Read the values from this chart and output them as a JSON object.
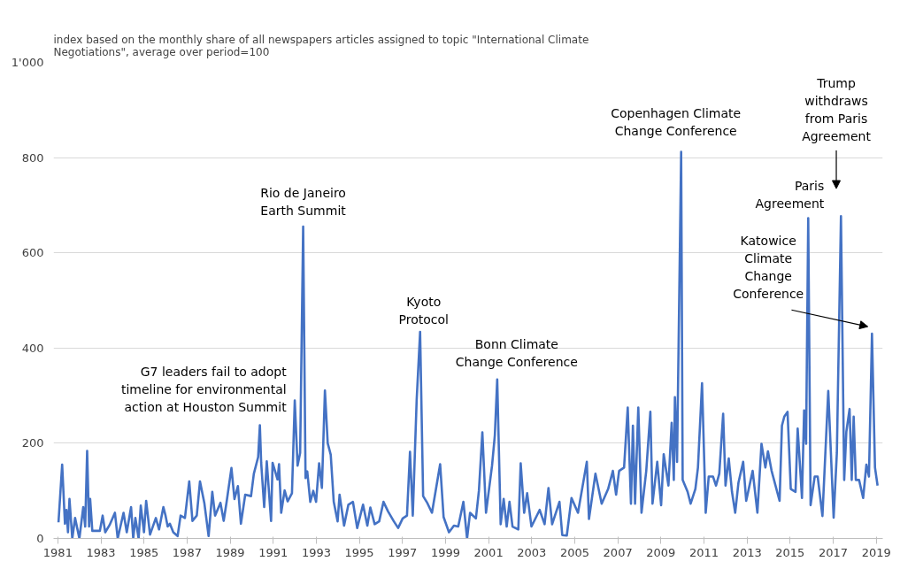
{
  "chart_data": {
    "type": "line",
    "title": "index based on the monthly share of all newspapers articles assigned to topic \"International Climate Negotiations\", average over period=100",
    "series": [
      {
        "color": "#4472c4",
        "x": [
          1981.03,
          1981.2,
          1981.33,
          1981.4,
          1981.47,
          1981.54,
          1981.67,
          1981.8,
          1982.0,
          1982.18,
          1982.27,
          1982.36,
          1982.45,
          1982.5,
          1982.6,
          1982.95,
          1983.08,
          1983.2,
          1983.4,
          1983.65,
          1983.78,
          1984.05,
          1984.2,
          1984.4,
          1984.5,
          1984.6,
          1984.75,
          1984.85,
          1985.0,
          1985.1,
          1985.28,
          1985.55,
          1985.7,
          1985.9,
          1986.0,
          1986.1,
          1986.2,
          1986.36,
          1986.56,
          1986.7,
          1986.9,
          1987.1,
          1987.25,
          1987.45,
          1987.6,
          1987.8,
          1988.0,
          1988.17,
          1988.3,
          1988.55,
          1988.7,
          1988.84,
          1989.06,
          1989.2,
          1989.36,
          1989.5,
          1989.7,
          1989.97,
          1990.1,
          1990.3,
          1990.38,
          1990.44,
          1990.58,
          1990.7,
          1990.9,
          1990.97,
          1991.2,
          1991.27,
          1991.37,
          1991.53,
          1991.67,
          1991.87,
          1992.0,
          1992.13,
          1992.25,
          1992.39,
          1992.5,
          1992.58,
          1992.72,
          1992.86,
          1992.99,
          1993.13,
          1993.26,
          1993.4,
          1993.53,
          1993.67,
          1993.81,
          1993.99,
          1994.08,
          1994.29,
          1994.49,
          1994.7,
          1994.9,
          1995.17,
          1995.37,
          1995.51,
          1995.71,
          1995.92,
          1996.12,
          1996.33,
          1996.6,
          1996.8,
          1997.01,
          1997.21,
          1997.35,
          1997.48,
          1997.66,
          1997.82,
          1997.96,
          1998.16,
          1998.37,
          1998.75,
          1998.91,
          1999.16,
          1999.39,
          1999.59,
          1999.83,
          2000.0,
          2000.14,
          2000.41,
          2000.55,
          2000.71,
          2000.88,
          2001.16,
          2001.29,
          2001.4,
          2001.56,
          2001.7,
          2001.84,
          2001.97,
          2002.11,
          2002.38,
          2002.49,
          2002.65,
          2002.79,
          2002.99,
          2003.37,
          2003.6,
          2003.78,
          2003.95,
          2004.29,
          2004.42,
          2004.63,
          2004.85,
          2005.15,
          2005.56,
          2005.66,
          2005.96,
          2006.25,
          2006.55,
          2006.77,
          2006.92,
          2007.06,
          2007.29,
          2007.46,
          2007.61,
          2007.7,
          2007.8,
          2007.95,
          2008.1,
          2008.32,
          2008.51,
          2008.61,
          2008.83,
          2009.01,
          2009.13,
          2009.35,
          2009.5,
          2009.6,
          2009.65,
          2009.75,
          2009.94,
          2010.01,
          2010.24,
          2010.38,
          2010.6,
          2010.72,
          2010.91,
          2011.08,
          2011.22,
          2011.42,
          2011.56,
          2011.71,
          2011.89,
          2012.0,
          2012.15,
          2012.3,
          2012.45,
          2012.6,
          2012.82,
          2012.96,
          2013.26,
          2013.48,
          2013.67,
          2013.85,
          2013.97,
          2014.14,
          2014.51,
          2014.62,
          2014.73,
          2014.88,
          2015.03,
          2015.25,
          2015.35,
          2015.55,
          2015.65,
          2015.74,
          2015.84,
          2015.95,
          2016.14,
          2016.28,
          2016.5,
          2016.77,
          2017.02,
          2017.17,
          2017.36,
          2017.51,
          2017.61,
          2017.76,
          2017.86,
          2017.95,
          2018.05,
          2018.2,
          2018.39,
          2018.54,
          2018.66,
          2018.8,
          2018.94,
          2019.06
        ],
        "values": [
          34,
          155,
          31,
          60,
          13,
          83,
          0,
          43,
          0,
          66,
          25,
          184,
          25,
          83,
          16,
          16,
          48,
          13,
          28,
          54,
          0,
          54,
          13,
          66,
          0,
          43,
          0,
          69,
          13,
          79,
          8,
          43,
          19,
          66,
          48,
          25,
          31,
          13,
          5,
          48,
          43,
          120,
          37,
          48,
          120,
          75,
          5,
          98,
          48,
          75,
          37,
          78,
          148,
          83,
          110,
          31,
          92,
          89,
          136,
          171,
          238,
          159,
          66,
          162,
          37,
          159,
          124,
          156,
          54,
          101,
          78,
          95,
          290,
          153,
          180,
          655,
          127,
          141,
          77,
          100,
          77,
          158,
          106,
          311,
          200,
          176,
          77,
          36,
          92,
          27,
          71,
          77,
          22,
          71,
          27,
          65,
          30,
          36,
          77,
          57,
          36,
          22,
          42,
          48,
          182,
          48,
          291,
          434,
          89,
          74,
          54,
          156,
          45,
          13,
          27,
          25,
          77,
          0,
          54,
          42,
          100,
          223,
          54,
          153,
          217,
          334,
          30,
          83,
          25,
          77,
          25,
          19,
          158,
          54,
          95,
          25,
          60,
          30,
          106,
          30,
          77,
          7,
          6,
          85,
          54,
          161,
          41,
          136,
          73,
          104,
          142,
          92,
          142,
          149,
          275,
          73,
          237,
          73,
          275,
          54,
          142,
          266,
          73,
          161,
          70,
          177,
          111,
          243,
          123,
          297,
          161,
          812,
          123,
          98,
          73,
          104,
          149,
          326,
          54,
          130,
          130,
          111,
          136,
          262,
          111,
          168,
          98,
          54,
          117,
          161,
          79,
          142,
          54,
          199,
          149,
          183,
          142,
          79,
          237,
          256,
          266,
          104,
          98,
          231,
          85,
          269,
          199,
          673,
          70,
          130,
          130,
          47,
          310,
          44,
          180,
          677,
          123,
          224,
          272,
          123,
          256,
          123,
          123,
          85,
          155,
          130,
          430,
          149,
          111
        ]
      }
    ],
    "xlim": [
      1980.8,
      2019.3
    ],
    "xticks": [
      1981,
      1983,
      1985,
      1987,
      1989,
      1991,
      1993,
      1995,
      1997,
      1999,
      2001,
      2003,
      2005,
      2007,
      2009,
      2011,
      2013,
      2015,
      2017,
      2019
    ],
    "ylim": [
      0,
      1000
    ],
    "yticks": [
      0,
      200,
      400,
      600,
      800,
      {
        "value": 1000,
        "label": "1'000"
      }
    ],
    "grid": "y",
    "line_style": "solid",
    "marker": "none",
    "annotations": [
      {
        "text": "G7 leaders fail to adopt\ntimeline for environmental\naction at Houston Summit",
        "x": 1990.38,
        "y": 238
      },
      {
        "text": "Rio de Janeiro\nEarth Summit",
        "x": 1992.39,
        "y": 655
      },
      {
        "text": "Kyoto\nProtocol",
        "x": 1997.82,
        "y": 434
      },
      {
        "text": "Bonn Climate\nChange Conference",
        "x": 2001.4,
        "y": 334
      },
      {
        "text": "Copenhagen Climate\nChange Conference",
        "x": 2009.94,
        "y": 812
      },
      {
        "text": "Paris\nAgreement",
        "x": 2015.84,
        "y": 673
      },
      "Katowice\nClimate\nChange\nConference",
      "Trump\nwithdraws\nfrom Paris\nAgreement"
    ]
  }
}
